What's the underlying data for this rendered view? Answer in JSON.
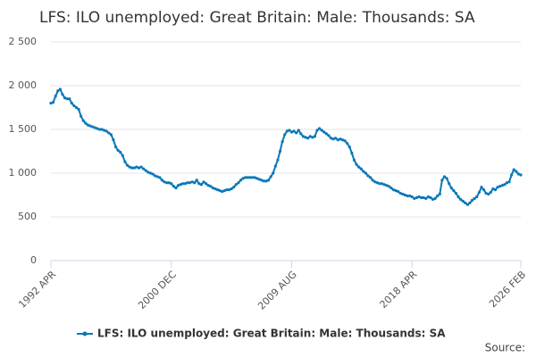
{
  "chart_data": {
    "type": "line",
    "title": "LFS: ILO unemployed: Great Britain: Male: Thousands: SA",
    "source": "Source:",
    "categories": [
      "1992 APR",
      null,
      null,
      null,
      null,
      null,
      null,
      null,
      null,
      null,
      null,
      null,
      null,
      null,
      null,
      null,
      null,
      null,
      null,
      null,
      null,
      null,
      null,
      null,
      null,
      null,
      null,
      null,
      null,
      null,
      null,
      null,
      null,
      null,
      null,
      null,
      null,
      null,
      null,
      null,
      null,
      null,
      null,
      null,
      null,
      null,
      null,
      null,
      null,
      null,
      null,
      null,
      "2000 DEC",
      null,
      null,
      null,
      null,
      null,
      null,
      null,
      null,
      null,
      null,
      null,
      null,
      null,
      null,
      null,
      null,
      null,
      null,
      null,
      null,
      null,
      null,
      null,
      null,
      null,
      null,
      null,
      null,
      null,
      null,
      null,
      null,
      null,
      null,
      null,
      null,
      null,
      null,
      null,
      null,
      null,
      null,
      null,
      null,
      null,
      null,
      null,
      null,
      null,
      null,
      null,
      "2009 AUG",
      null,
      null,
      null,
      null,
      null,
      null,
      null,
      null,
      null,
      null,
      null,
      null,
      null,
      null,
      null,
      null,
      null,
      null,
      null,
      null,
      null,
      null,
      null,
      null,
      null,
      null,
      null,
      null,
      null,
      null,
      null,
      null,
      null,
      null,
      null,
      null,
      null,
      null,
      null,
      null,
      null,
      null,
      null,
      null,
      null,
      null,
      null,
      null,
      null,
      null,
      null,
      "2018 APR",
      null,
      null,
      null,
      null,
      null,
      null,
      null,
      null,
      null,
      null,
      null,
      null,
      null,
      null,
      null,
      null,
      null,
      null,
      null,
      null,
      null,
      null,
      null,
      null,
      null,
      null,
      null,
      null,
      null,
      null,
      null,
      null,
      null,
      null,
      null,
      null,
      null,
      null,
      null,
      null,
      null,
      null,
      null,
      null,
      null,
      null,
      "2026 FEB"
    ],
    "series": [
      {
        "name": "LFS: ILO unemployed: Great Britain: Male: Thousands: SA",
        "color": "#0a78b8",
        "values": [
          1800,
          1810,
          1880,
          1940,
          1960,
          1900,
          1860,
          1850,
          1850,
          1800,
          1770,
          1750,
          1730,
          1650,
          1600,
          1570,
          1550,
          1540,
          1530,
          1520,
          1510,
          1500,
          1500,
          1490,
          1480,
          1460,
          1440,
          1380,
          1300,
          1260,
          1240,
          1200,
          1130,
          1090,
          1070,
          1060,
          1060,
          1070,
          1060,
          1070,
          1050,
          1030,
          1010,
          1000,
          990,
          970,
          960,
          950,
          920,
          900,
          890,
          890,
          880,
          850,
          830,
          860,
          870,
          880,
          880,
          890,
          890,
          900,
          890,
          920,
          880,
          870,
          900,
          880,
          860,
          850,
          830,
          820,
          810,
          800,
          790,
          800,
          810,
          810,
          820,
          840,
          870,
          890,
          920,
          940,
          950,
          950,
          950,
          950,
          950,
          940,
          930,
          920,
          910,
          910,
          920,
          960,
          1000,
          1080,
          1150,
          1250,
          1360,
          1440,
          1480,
          1490,
          1470,
          1480,
          1460,
          1490,
          1450,
          1420,
          1410,
          1400,
          1420,
          1410,
          1420,
          1490,
          1510,
          1490,
          1470,
          1450,
          1430,
          1400,
          1390,
          1400,
          1380,
          1390,
          1380,
          1370,
          1340,
          1300,
          1230,
          1150,
          1100,
          1070,
          1050,
          1020,
          1000,
          970,
          950,
          920,
          900,
          890,
          880,
          880,
          870,
          860,
          850,
          830,
          810,
          800,
          790,
          770,
          760,
          750,
          740,
          740,
          730,
          710,
          720,
          730,
          720,
          720,
          710,
          730,
          720,
          700,
          710,
          740,
          760,
          920,
          960,
          940,
          880,
          830,
          800,
          770,
          730,
          700,
          680,
          660,
          640,
          660,
          690,
          710,
          730,
          780,
          840,
          810,
          770,
          760,
          780,
          820,
          810,
          840,
          850,
          860,
          870,
          890,
          900,
          980,
          1040,
          1020,
          990,
          980
        ]
      }
    ],
    "ylim": [
      0,
      2500
    ],
    "yticks": [
      0,
      500,
      {
        "value": 1000,
        "label": "1 000"
      },
      {
        "value": 1500,
        "label": "1 500"
      },
      {
        "value": 2000,
        "label": "2 000"
      },
      {
        "value": 2500,
        "label": "2 500"
      }
    ],
    "grid": true,
    "legend": "bottom"
  }
}
